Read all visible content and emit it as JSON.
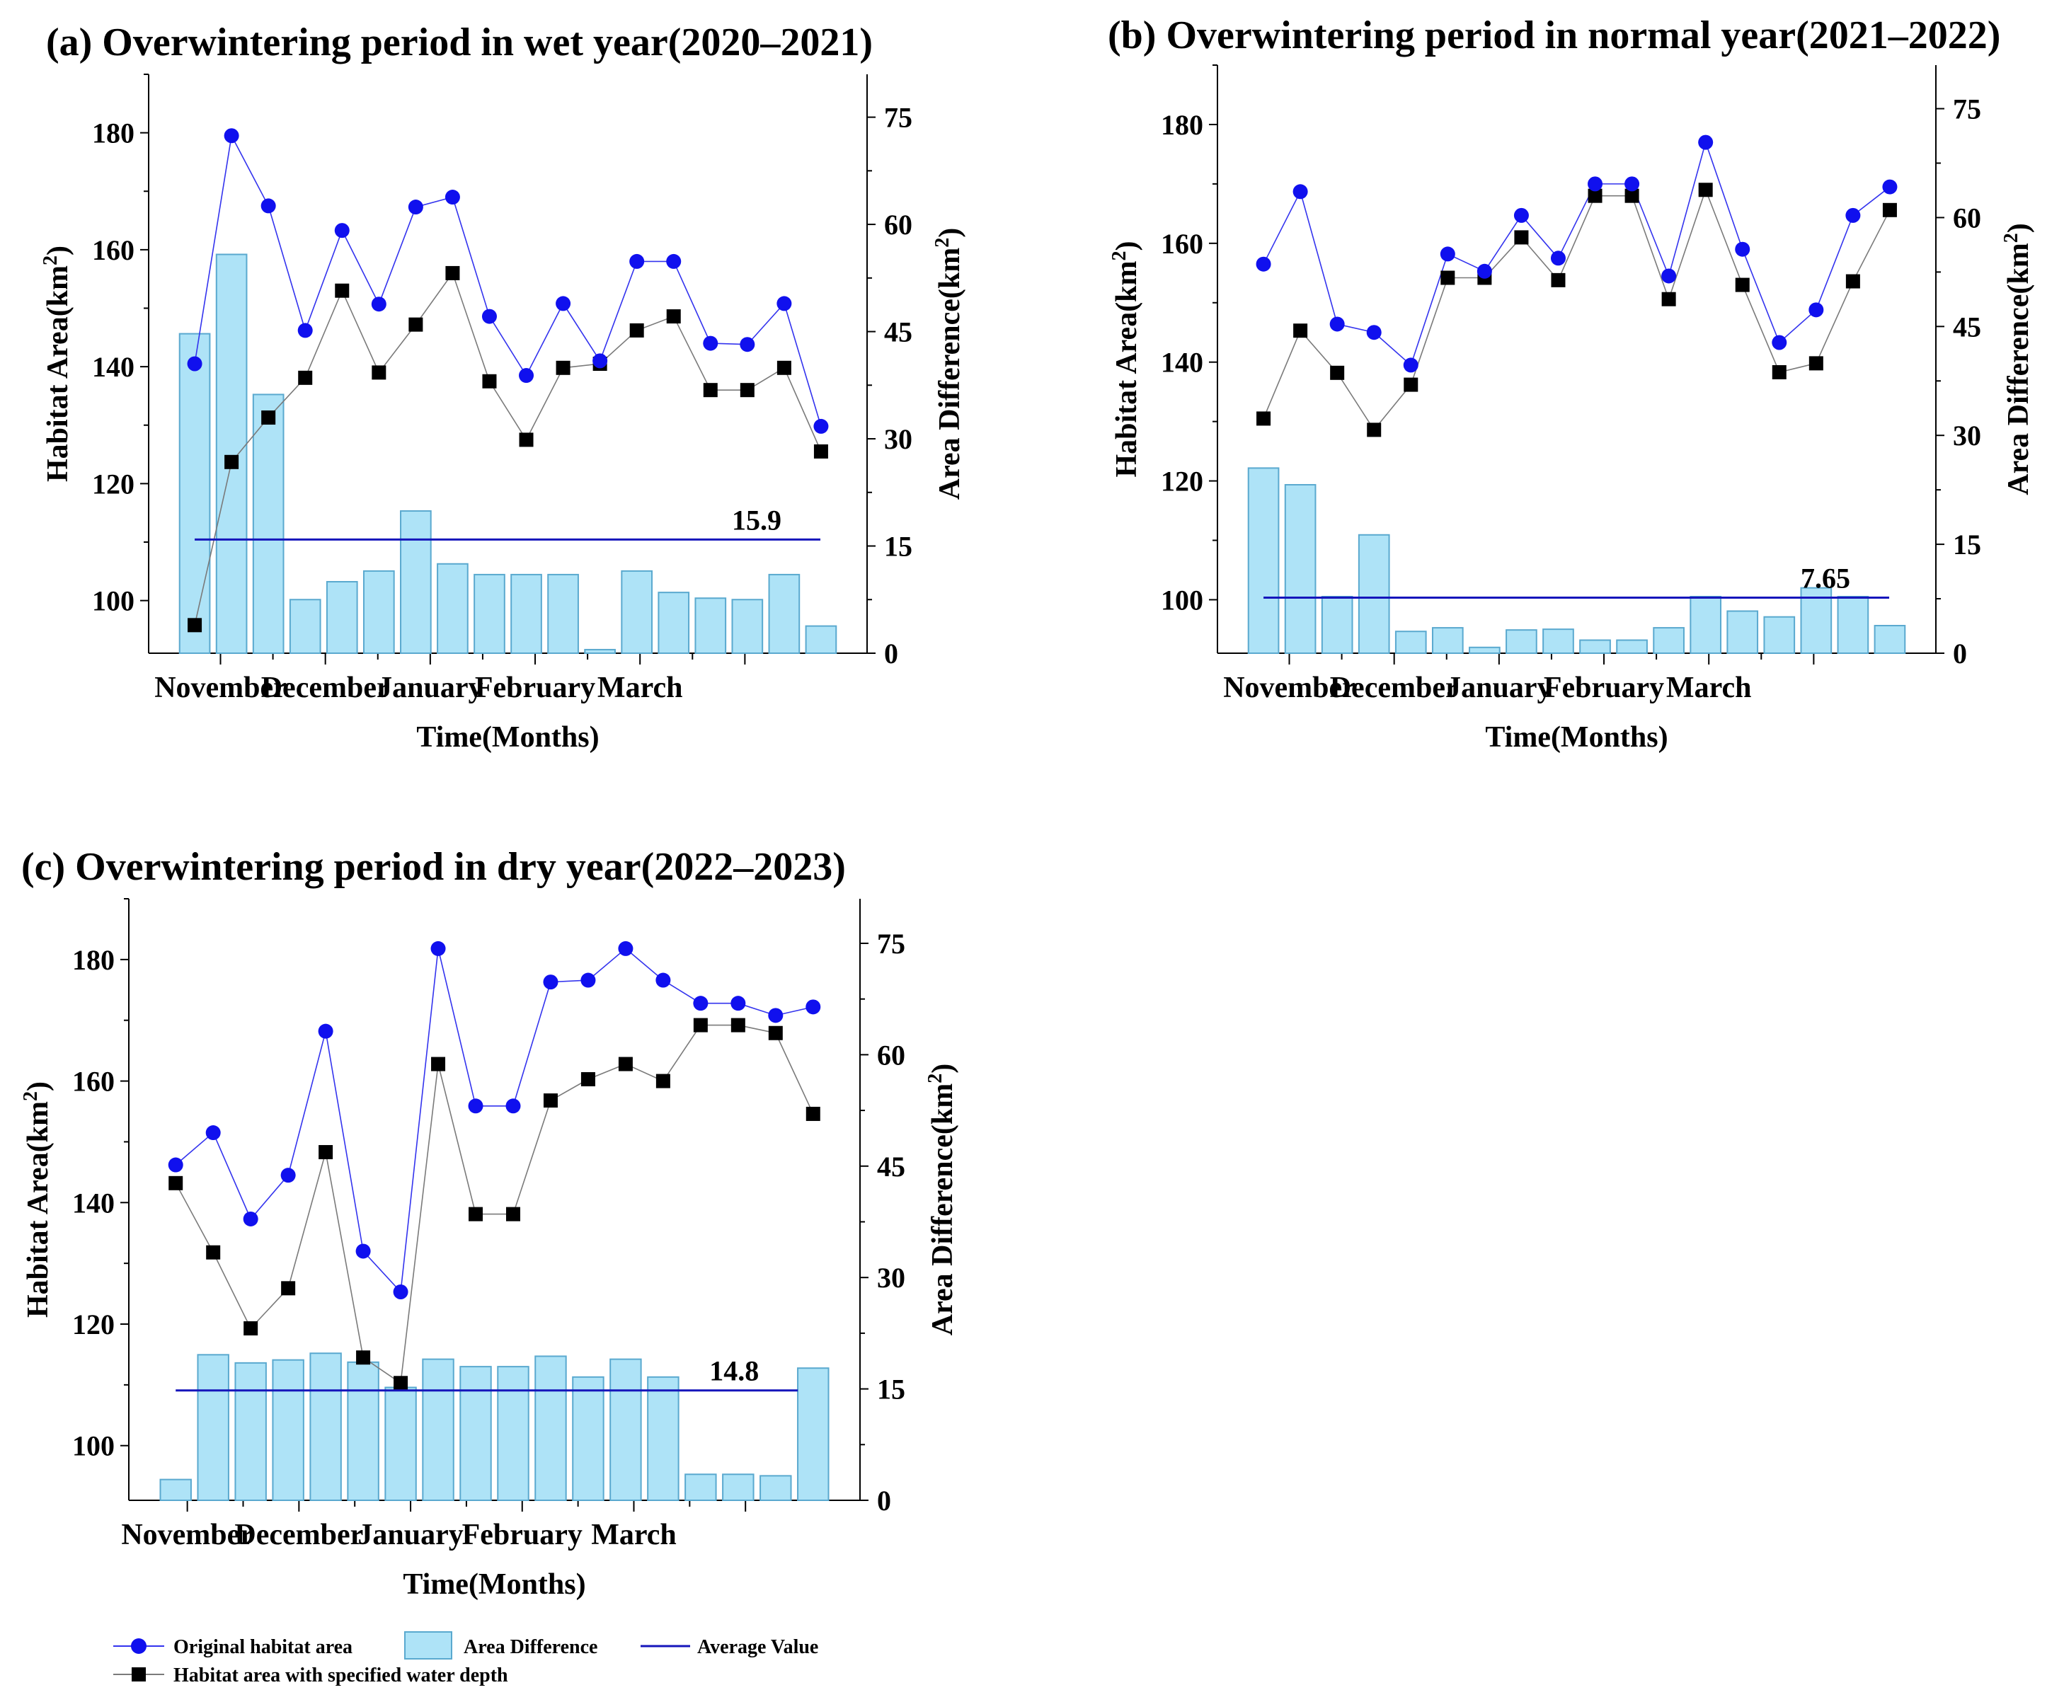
{
  "colors": {
    "original_line": "#3333ee",
    "original_marker": "#1010ee",
    "depth_line": "#7a7a7a",
    "depth_marker": "#000000",
    "bar_fill": "#aee3f7",
    "bar_stroke": "#5aa9cf",
    "average_line": "#1515bb"
  },
  "legend": {
    "original": "Original habitat area",
    "difference": "Area Difference",
    "average": "Average Value",
    "depth": "Habitat area with specified water depth"
  },
  "chart_data": [
    {
      "type": "bar+line",
      "panel": "a",
      "title": "(a) Overwintering period in wet year(2020–2021)",
      "xlabel": "Time(Months)",
      "ylabel": "Habitat Area(km",
      "y2label": "Area Difference(km",
      "unit_sup": "2",
      "unit_close": ")",
      "months": [
        "November",
        "December",
        "January",
        "February",
        "March"
      ],
      "ylim": [
        91,
        190
      ],
      "yticks": [
        100,
        120,
        140,
        160,
        180
      ],
      "y2lim": [
        0,
        81
      ],
      "y2ticks": [
        0,
        15,
        30,
        45,
        60,
        75
      ],
      "series": [
        {
          "name": "Original habitat area",
          "values": [
            140.5,
            179.5,
            167.5,
            146.2,
            163.3,
            150.7,
            167.3,
            169.0,
            148.6,
            138.5,
            150.8,
            141.0,
            158.0,
            158.0,
            144.0,
            143.8,
            150.8,
            129.8
          ]
        },
        {
          "name": "Habitat area with specified water depth",
          "values": [
            95.8,
            123.7,
            131.3,
            138.1,
            153.0,
            139.0,
            147.2,
            156.0,
            137.5,
            127.5,
            139.8,
            140.5,
            146.2,
            148.6,
            136.0,
            136.0,
            139.8,
            125.5
          ]
        },
        {
          "name": "Area Difference",
          "values": [
            44.7,
            55.8,
            36.2,
            7.5,
            10.0,
            11.5,
            19.9,
            12.5,
            11.0,
            11.0,
            11.0,
            0.5,
            11.5,
            8.5,
            7.7,
            7.5,
            11.0,
            3.8
          ]
        }
      ],
      "average": 15.9,
      "average_label": "15.9"
    },
    {
      "type": "bar+line",
      "panel": "b",
      "title": "(b) Overwintering period in normal year(2021–2022)",
      "xlabel": "Time(Months)",
      "ylabel": "Habitat Area(km",
      "y2label": "Area Difference(km",
      "unit_sup": "2",
      "unit_close": ")",
      "months": [
        "November",
        "December",
        "January",
        "February",
        "March"
      ],
      "ylim": [
        91,
        190
      ],
      "yticks": [
        100,
        120,
        140,
        160,
        180
      ],
      "y2lim": [
        0,
        81
      ],
      "y2ticks": [
        0,
        15,
        30,
        45,
        60,
        75
      ],
      "series": [
        {
          "name": "Original habitat area",
          "values": [
            156.5,
            168.7,
            146.4,
            145.0,
            139.5,
            158.2,
            155.3,
            164.7,
            157.5,
            170.0,
            170.0,
            154.5,
            177.0,
            159.0,
            143.3,
            148.8,
            164.7,
            169.5
          ]
        },
        {
          "name": "Habitat area with specified water depth",
          "values": [
            130.5,
            145.3,
            138.2,
            128.6,
            136.2,
            154.2,
            154.2,
            161.0,
            153.8,
            168.0,
            168.0,
            150.6,
            169.0,
            153.0,
            138.3,
            139.8,
            153.6,
            165.6
          ]
        },
        {
          "name": "Area Difference",
          "values": [
            25.5,
            23.2,
            7.8,
            16.3,
            3.0,
            3.5,
            0.8,
            3.2,
            3.3,
            1.8,
            1.8,
            3.5,
            7.8,
            5.8,
            5.0,
            9.0,
            7.8,
            3.8
          ]
        }
      ],
      "average": 7.65,
      "average_label": "7.65"
    },
    {
      "type": "bar+line",
      "panel": "c",
      "title": "(c) Overwintering period in dry year(2022–2023)",
      "xlabel": "Time(Months)",
      "ylabel": "Habitat Area(km",
      "y2label": "Area Difference(km",
      "unit_sup": "2",
      "unit_close": ")",
      "months": [
        "November",
        "December",
        "January",
        "February",
        "March"
      ],
      "ylim": [
        91,
        190
      ],
      "yticks": [
        100,
        120,
        140,
        160,
        180
      ],
      "y2lim": [
        0,
        81
      ],
      "y2ticks": [
        0,
        15,
        30,
        45,
        60,
        75
      ],
      "series": [
        {
          "name": "Original habitat area",
          "values": [
            146.2,
            151.5,
            137.3,
            144.5,
            168.2,
            132.0,
            125.3,
            181.8,
            155.9,
            155.9,
            176.3,
            176.6,
            181.8,
            176.6,
            172.8,
            172.8,
            170.8,
            172.2
          ]
        },
        {
          "name": "Habitat area with specified water depth",
          "values": [
            143.2,
            131.8,
            119.3,
            125.9,
            148.3,
            114.5,
            110.3,
            162.8,
            138.1,
            138.1,
            156.8,
            160.3,
            162.8,
            160.0,
            169.2,
            169.2,
            167.9,
            154.6
          ]
        },
        {
          "name": "Area Difference",
          "values": [
            2.8,
            19.6,
            18.5,
            18.9,
            19.8,
            18.6,
            15.2,
            19.0,
            18.0,
            18.0,
            19.4,
            16.6,
            19.0,
            16.6,
            3.5,
            3.5,
            3.3,
            17.8
          ]
        }
      ],
      "average": 14.8,
      "average_label": "14.8"
    }
  ]
}
